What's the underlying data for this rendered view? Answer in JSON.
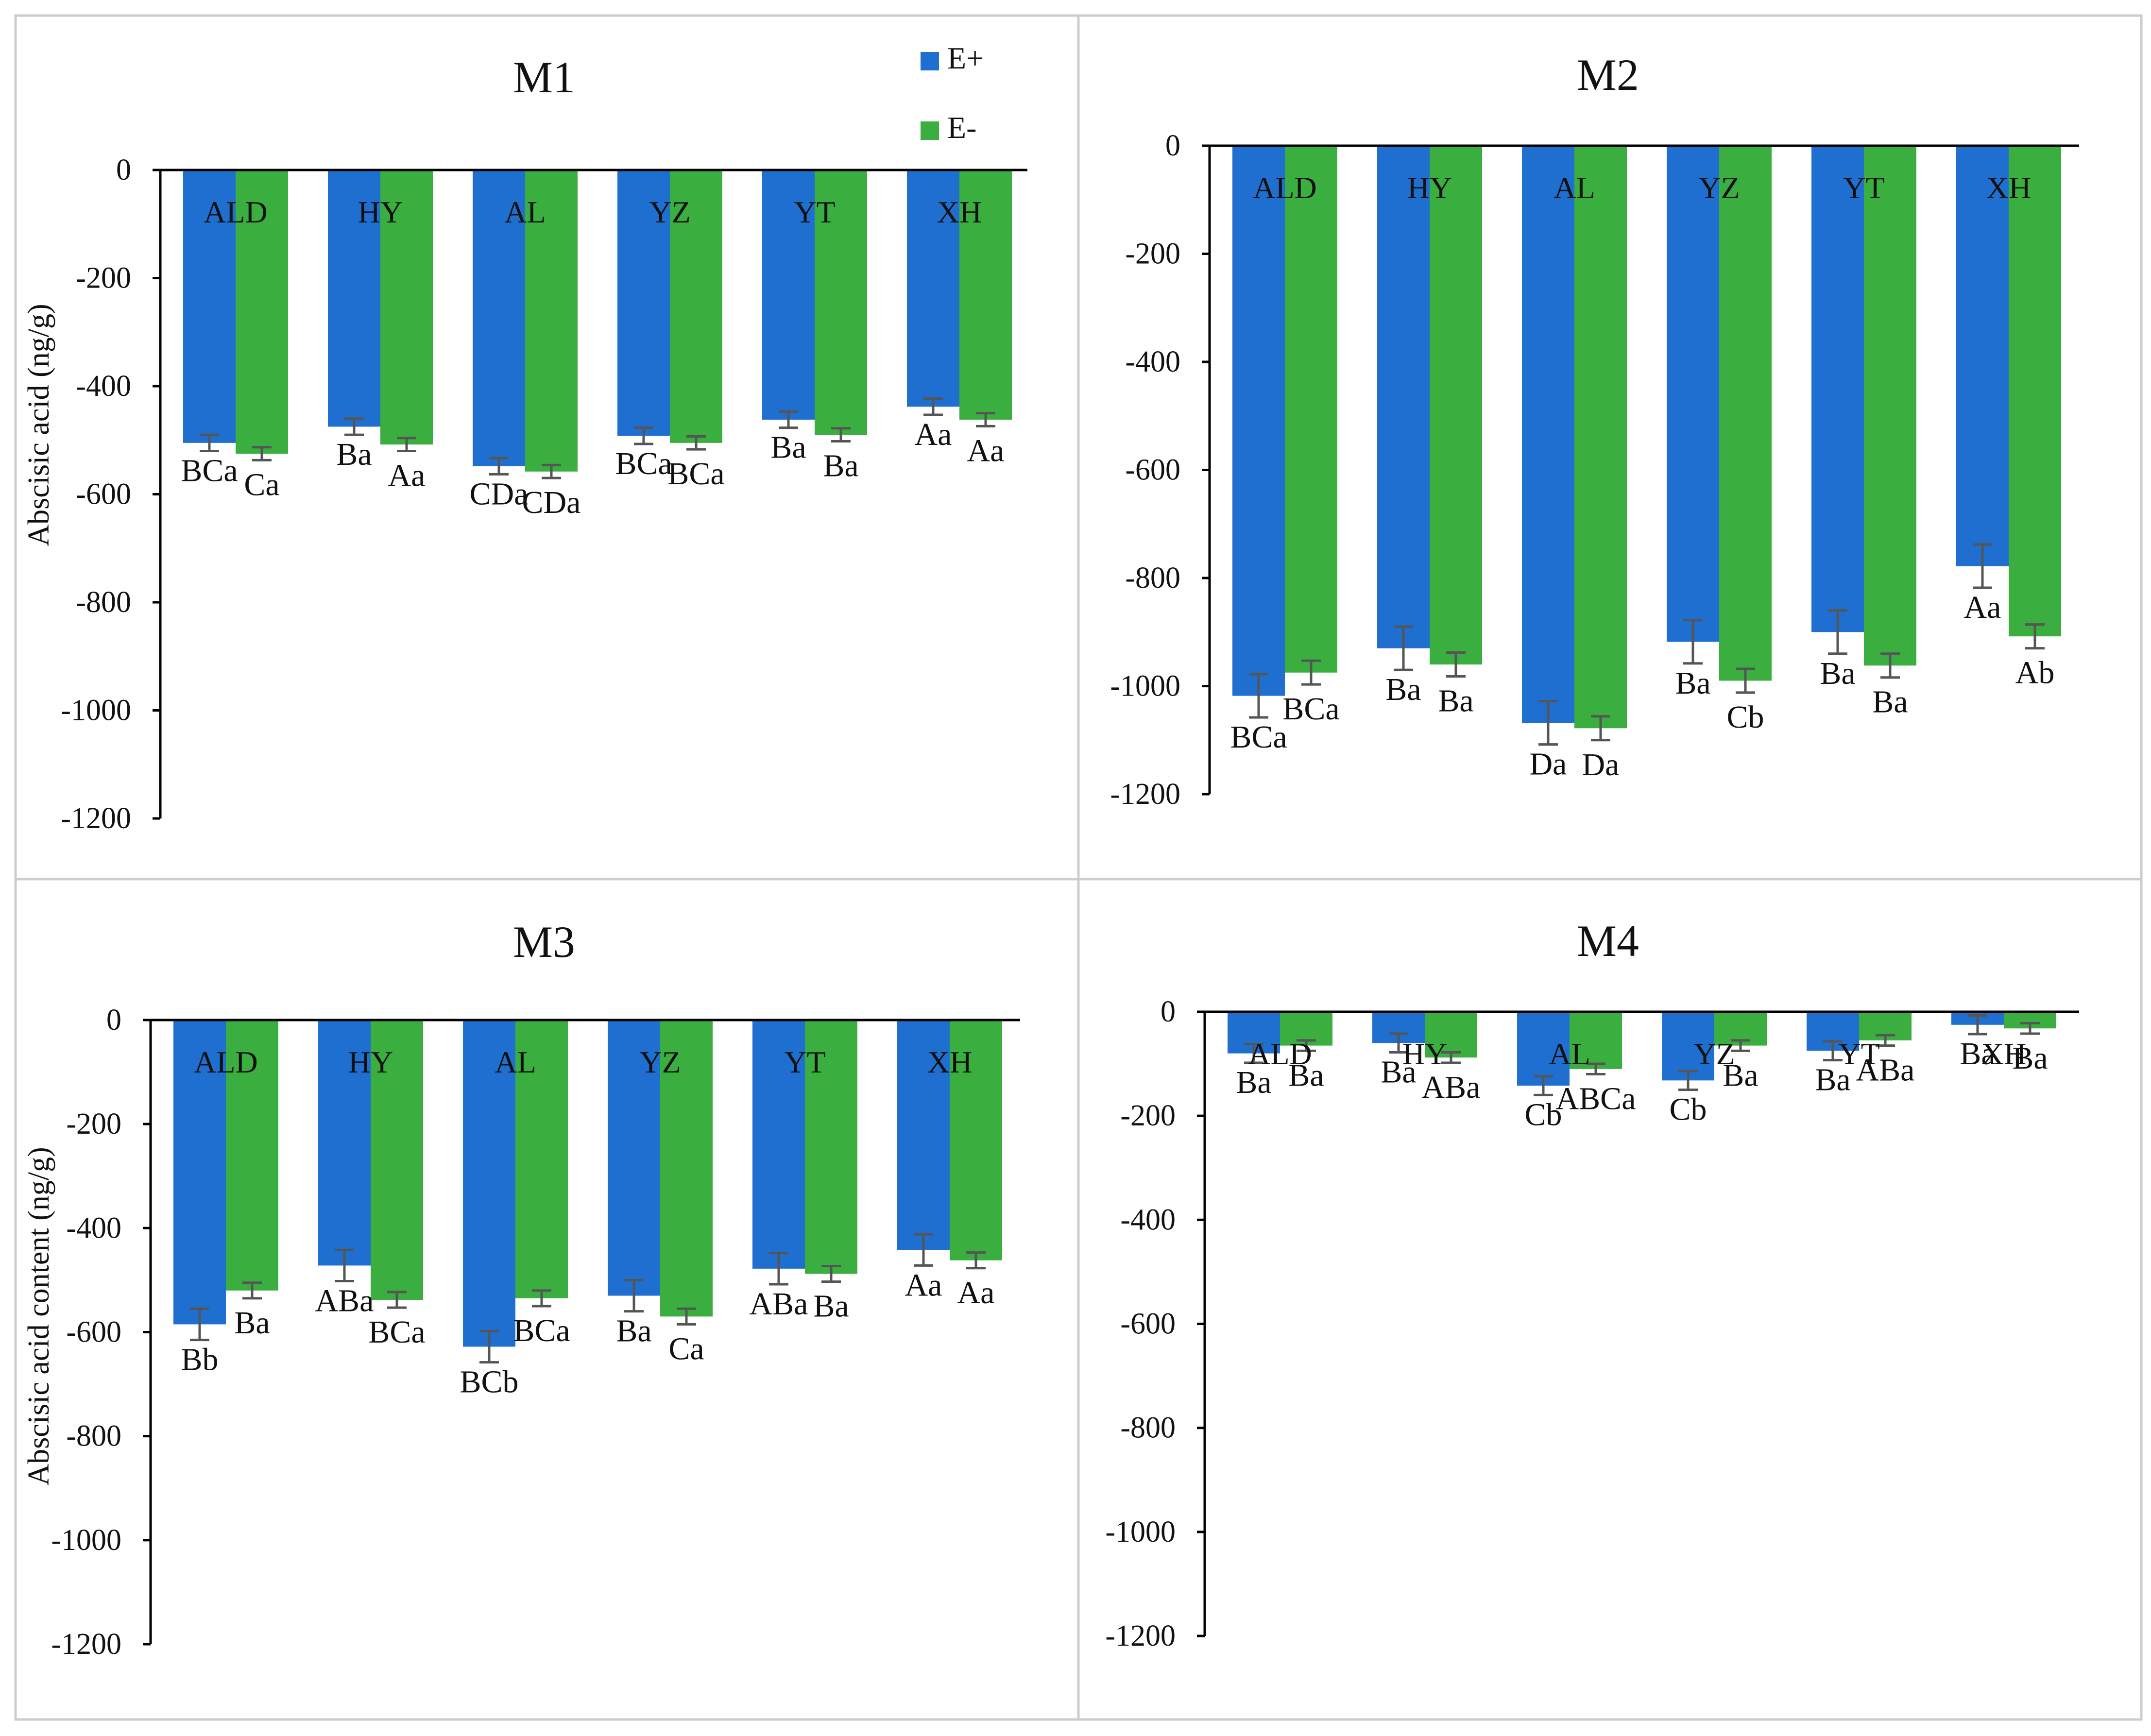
{
  "legend": {
    "items": [
      "E+",
      "E-"
    ],
    "placement": "top-right of M1 panel"
  },
  "colors": {
    "E_plus": "#1f6fd0",
    "E_minus": "#3aae3f",
    "axis": "#000000",
    "error_bar": "#555555",
    "panel_border": "#cccccc"
  },
  "chart_data": [
    {
      "type": "bar",
      "title": "M1",
      "ylabel": "Abscisic acid (ng/g)",
      "xlabel": "",
      "categories": [
        "ALD",
        "HY",
        "AL",
        "YZ",
        "YT",
        "XH"
      ],
      "ylim": [
        -1200,
        0
      ],
      "yticks": [
        "0",
        "-200",
        "-400",
        "-600",
        "-800",
        "-1000",
        "-1200"
      ],
      "series": [
        {
          "name": "E+",
          "values": [
            -505,
            -475,
            -548,
            -492,
            -462,
            -438
          ],
          "errors": [
            15,
            15,
            15,
            15,
            15,
            15
          ],
          "labels": [
            "BCa",
            "Ba",
            "CDa",
            "BCa",
            "Ba",
            "Aa"
          ]
        },
        {
          "name": "E-",
          "values": [
            -525,
            -508,
            -558,
            -505,
            -490,
            -462
          ],
          "errors": [
            12,
            12,
            12,
            12,
            12,
            12
          ],
          "labels": [
            "Ca",
            "Aa",
            "CDa",
            "BCa",
            "Ba",
            "Aa"
          ]
        }
      ]
    },
    {
      "type": "bar",
      "title": "M2",
      "ylabel": "",
      "xlabel": "",
      "categories": [
        "ALD",
        "HY",
        "AL",
        "YZ",
        "YT",
        "XH"
      ],
      "ylim": [
        -1200,
        0
      ],
      "yticks": [
        "0",
        "-200",
        "-400",
        "-600",
        "-800",
        "-1000",
        "-1200"
      ],
      "series": [
        {
          "name": "E+",
          "values": [
            -1018,
            -930,
            -1068,
            -918,
            -900,
            -778
          ],
          "errors": [
            40,
            40,
            40,
            40,
            40,
            40
          ],
          "labels": [
            "BCa",
            "Ba",
            "Da",
            "Ba",
            "Ba",
            "Aa"
          ]
        },
        {
          "name": "E-",
          "values": [
            -975,
            -960,
            -1078,
            -990,
            -962,
            -908
          ],
          "errors": [
            22,
            22,
            22,
            22,
            22,
            22
          ],
          "labels": [
            "BCa",
            "Ba",
            "Da",
            "Cb",
            "Ba",
            "Ab"
          ]
        }
      ]
    },
    {
      "type": "bar",
      "title": "M3",
      "ylabel": "Abscisic acid content (ng/g)",
      "xlabel": "",
      "categories": [
        "ALD",
        "HY",
        "AL",
        "YZ",
        "YT",
        "XH"
      ],
      "ylim": [
        -1200,
        0
      ],
      "yticks": [
        "0",
        "-200",
        "-400",
        "-600",
        "-800",
        "-1000",
        "-1200"
      ],
      "series": [
        {
          "name": "E+",
          "values": [
            -585,
            -472,
            -628,
            -530,
            -478,
            -442
          ],
          "errors": [
            30,
            30,
            30,
            30,
            30,
            30
          ],
          "labels": [
            "Bb",
            "ABa",
            "BCb",
            "Ba",
            "ABa",
            "Aa"
          ]
        },
        {
          "name": "E-",
          "values": [
            -520,
            -538,
            -535,
            -570,
            -488,
            -462
          ],
          "errors": [
            15,
            15,
            15,
            15,
            15,
            15
          ],
          "labels": [
            "Ba",
            "BCa",
            "BCa",
            "Ca",
            "Ba",
            "Aa"
          ]
        }
      ]
    },
    {
      "type": "bar",
      "title": "M4",
      "ylabel": "",
      "xlabel": "",
      "categories": [
        "ALD",
        "HY",
        "AL",
        "YZ",
        "YT",
        "XH"
      ],
      "ylim": [
        -1200,
        0
      ],
      "yticks": [
        "0",
        "-200",
        "-400",
        "-600",
        "-800",
        "-1000",
        "-1200"
      ],
      "series": [
        {
          "name": "E+",
          "values": [
            -80,
            -60,
            -142,
            -132,
            -75,
            -25
          ],
          "errors": [
            18,
            18,
            18,
            18,
            18,
            18
          ],
          "labels": [
            "Ba",
            "Ba",
            "Cb",
            "Cb",
            "Ba",
            "Ba"
          ]
        },
        {
          "name": "E-",
          "values": [
            -65,
            -88,
            -110,
            -65,
            -55,
            -32
          ],
          "errors": [
            10,
            10,
            10,
            10,
            10,
            10
          ],
          "labels": [
            "Ba",
            "ABa",
            "ABCa",
            "Ba",
            "ABa",
            "Ba"
          ]
        }
      ]
    }
  ]
}
